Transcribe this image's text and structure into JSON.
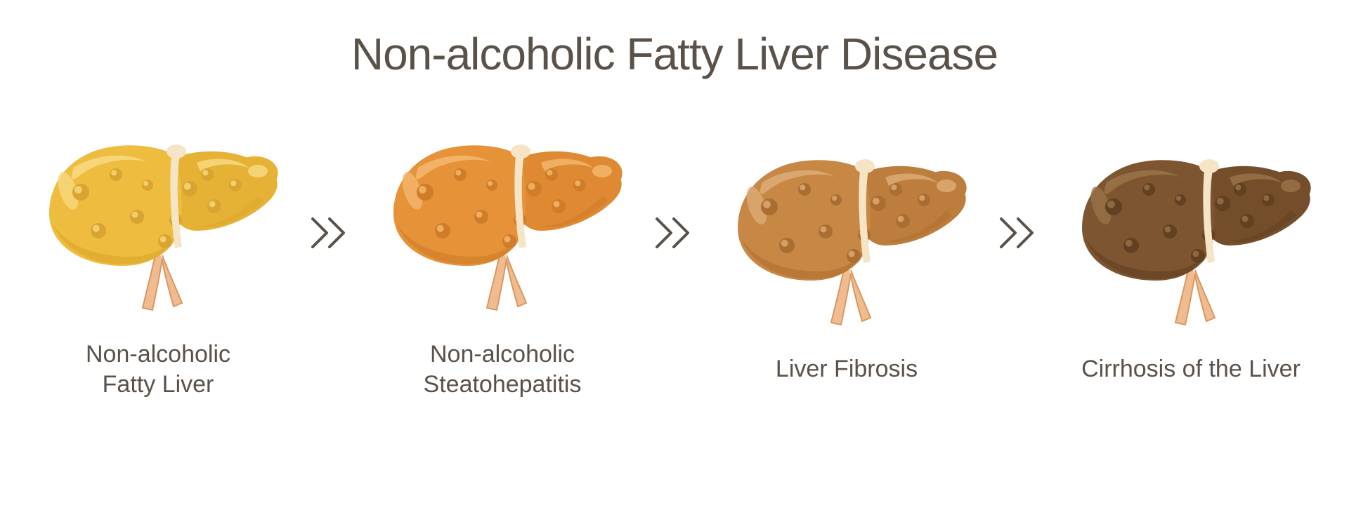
{
  "title": "Non-alcoholic Fatty Liver Disease",
  "title_color": "#5a5149",
  "title_fontsize": 64,
  "background_color": "#ffffff",
  "label_color": "#5a5149",
  "label_fontsize": 34,
  "arrow_color": "#5a5149",
  "ligament_color": "#f5e4c5",
  "vessel_fill": "#f0bb8f",
  "vessel_stroke": "#d89863",
  "stages": [
    {
      "id": "stage-fatty-liver",
      "label": "Non-alcoholic\nFatty Liver",
      "fill_main": "#eebd3f",
      "fill_lobe": "#e6b236",
      "fill_dark": "#dda82e",
      "highlight": "#f6d87f",
      "nodule": "#d9a431",
      "nodule_hi": "#f2cf6e"
    },
    {
      "id": "stage-steatohepatitis",
      "label": "Non-alcoholic\nSteatohepatitis",
      "fill_main": "#e59239",
      "fill_lobe": "#df8a32",
      "fill_dark": "#d27f2b",
      "highlight": "#f3b66d",
      "nodule": "#cf7d2a",
      "nodule_hi": "#f0ad5e"
    },
    {
      "id": "stage-fibrosis",
      "label": "Liver Fibrosis",
      "fill_main": "#c78745",
      "fill_lobe": "#bd7d3d",
      "fill_dark": "#b07233",
      "highlight": "#dcab74",
      "nodule": "#ab6e31",
      "nodule_hi": "#d5a068"
    },
    {
      "id": "stage-cirrhosis",
      "label": "Cirrhosis of the Liver",
      "fill_main": "#7d5531",
      "fill_lobe": "#744d2b",
      "fill_dark": "#674324",
      "highlight": "#9a7248",
      "nodule": "#624022",
      "nodule_hi": "#8e683f"
    }
  ]
}
